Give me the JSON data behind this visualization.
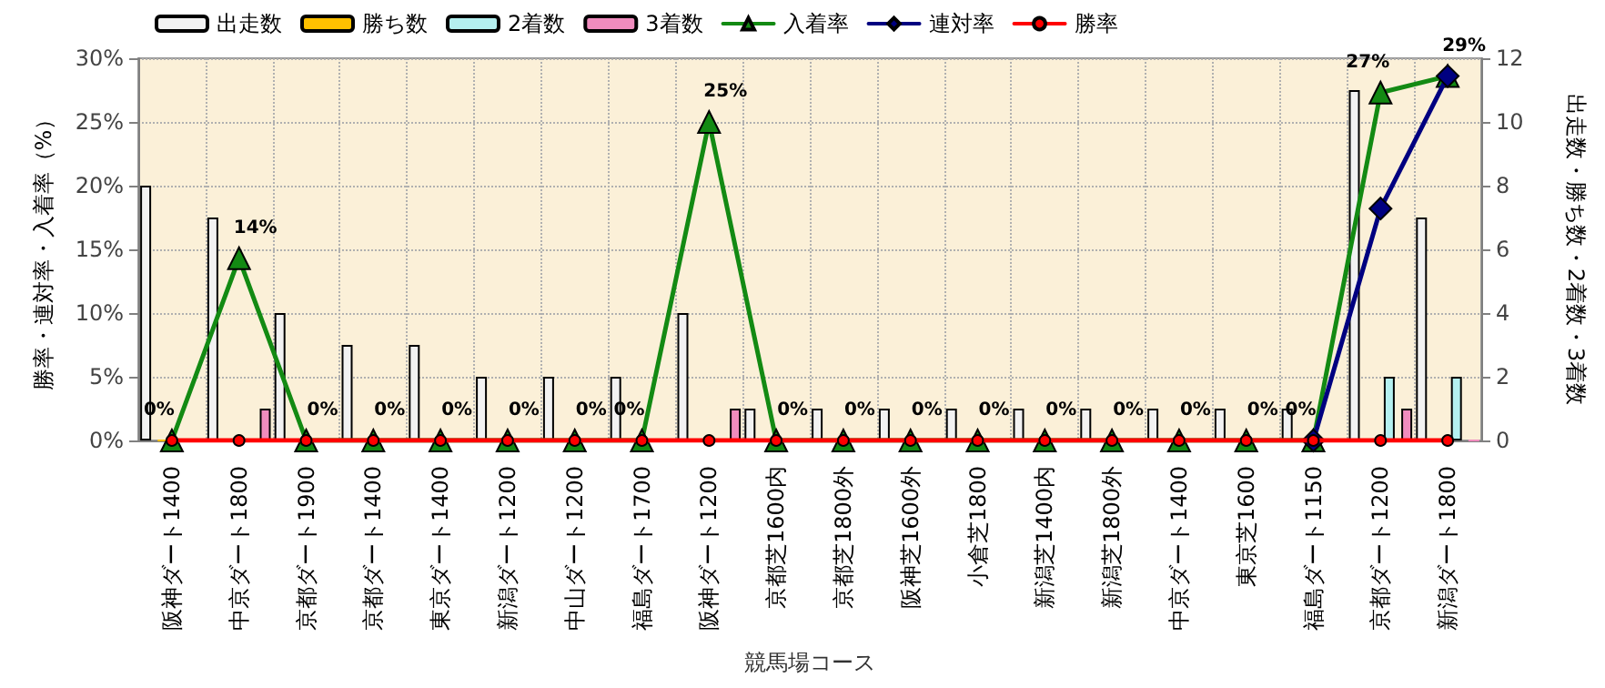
{
  "chart_data": {
    "type": "bar",
    "xlabel": "競馬場コース",
    "ylabel": "勝率・連対率・入着率（%）",
    "y2label": "出走数・勝ち数・2着数・3着数",
    "categories": [
      "阪神ダート1400",
      "中京ダート1800",
      "京都ダート1900",
      "京都ダート1400",
      "東京ダート1400",
      "新潟ダート1200",
      "中山ダート1200",
      "福島ダート1700",
      "阪神ダート1200",
      "京都芝1600内",
      "京都芝1800外",
      "阪神芝1600外",
      "小倉芝1800",
      "新潟芝1400内",
      "新潟芝1800外",
      "中京ダート1400",
      "東京芝1600",
      "福島ダート1150",
      "京都ダート1200",
      "新潟ダート1800"
    ],
    "series": [
      {
        "name": "出走数",
        "axis": "y2",
        "color": "#f2f2f2",
        "values": [
          8,
          7,
          4,
          3,
          3,
          2,
          2,
          2,
          4,
          1,
          1,
          1,
          1,
          1,
          1,
          1,
          1,
          1,
          11,
          7
        ]
      },
      {
        "name": "勝ち数",
        "axis": "y2",
        "color": "#ffc000",
        "values": [
          0,
          0,
          0,
          0,
          0,
          0,
          0,
          0,
          0,
          0,
          0,
          0,
          0,
          0,
          0,
          0,
          0,
          0,
          0,
          0
        ]
      },
      {
        "name": "2着数",
        "axis": "y2",
        "color": "#b4f0f0",
        "values": [
          0,
          0,
          0,
          0,
          0,
          0,
          0,
          0,
          0,
          0,
          0,
          0,
          0,
          0,
          0,
          0,
          0,
          0,
          2,
          2
        ]
      },
      {
        "name": "3着数",
        "axis": "y2",
        "color": "#f08cbe",
        "values": [
          0,
          1,
          0,
          0,
          0,
          0,
          0,
          0,
          1,
          0,
          0,
          0,
          0,
          0,
          0,
          0,
          0,
          0,
          1,
          0
        ]
      },
      {
        "name": "入着率",
        "type": "line",
        "marker": "triangle",
        "color": "#138a13",
        "values": [
          0,
          14.3,
          0,
          0,
          0,
          0,
          0,
          0,
          25,
          0,
          0,
          0,
          0,
          0,
          0,
          0,
          0,
          0,
          27.3,
          28.6
        ],
        "value_labels": [
          "0%",
          "14%",
          "0%",
          "0%",
          "0%",
          "0%",
          "0%",
          "0%",
          "25%",
          "0%",
          "0%",
          "0%",
          "0%",
          "0%",
          "0%",
          "0%",
          "0%",
          "0%",
          "27%",
          "29%"
        ]
      },
      {
        "name": "連対率",
        "type": "line",
        "marker": "diamond",
        "color": "#000080",
        "values": [
          null,
          null,
          null,
          null,
          null,
          null,
          null,
          null,
          null,
          null,
          null,
          null,
          null,
          null,
          null,
          null,
          null,
          0,
          18.2,
          28.6
        ]
      },
      {
        "name": "勝率",
        "type": "line",
        "marker": "circle",
        "color": "#ff0000",
        "values": [
          0,
          0,
          0,
          0,
          0,
          0,
          0,
          0,
          0,
          0,
          0,
          0,
          0,
          0,
          0,
          0,
          0,
          0,
          0,
          0
        ]
      }
    ],
    "ylim": [
      0,
      30
    ],
    "yticks": [
      {
        "value": 0,
        "label": "0%"
      },
      {
        "value": 5,
        "label": "5%"
      },
      {
        "value": 10,
        "label": "10%"
      },
      {
        "value": 15,
        "label": "15%"
      },
      {
        "value": 20,
        "label": "20%"
      },
      {
        "value": 25,
        "label": "25%"
      },
      {
        "value": 30,
        "label": "30%"
      }
    ],
    "y2lim": [
      0,
      12
    ],
    "y2ticks": [
      0,
      2,
      4,
      6,
      8,
      10,
      12
    ],
    "grid": true,
    "legend": "top left",
    "line_style": "solid"
  }
}
